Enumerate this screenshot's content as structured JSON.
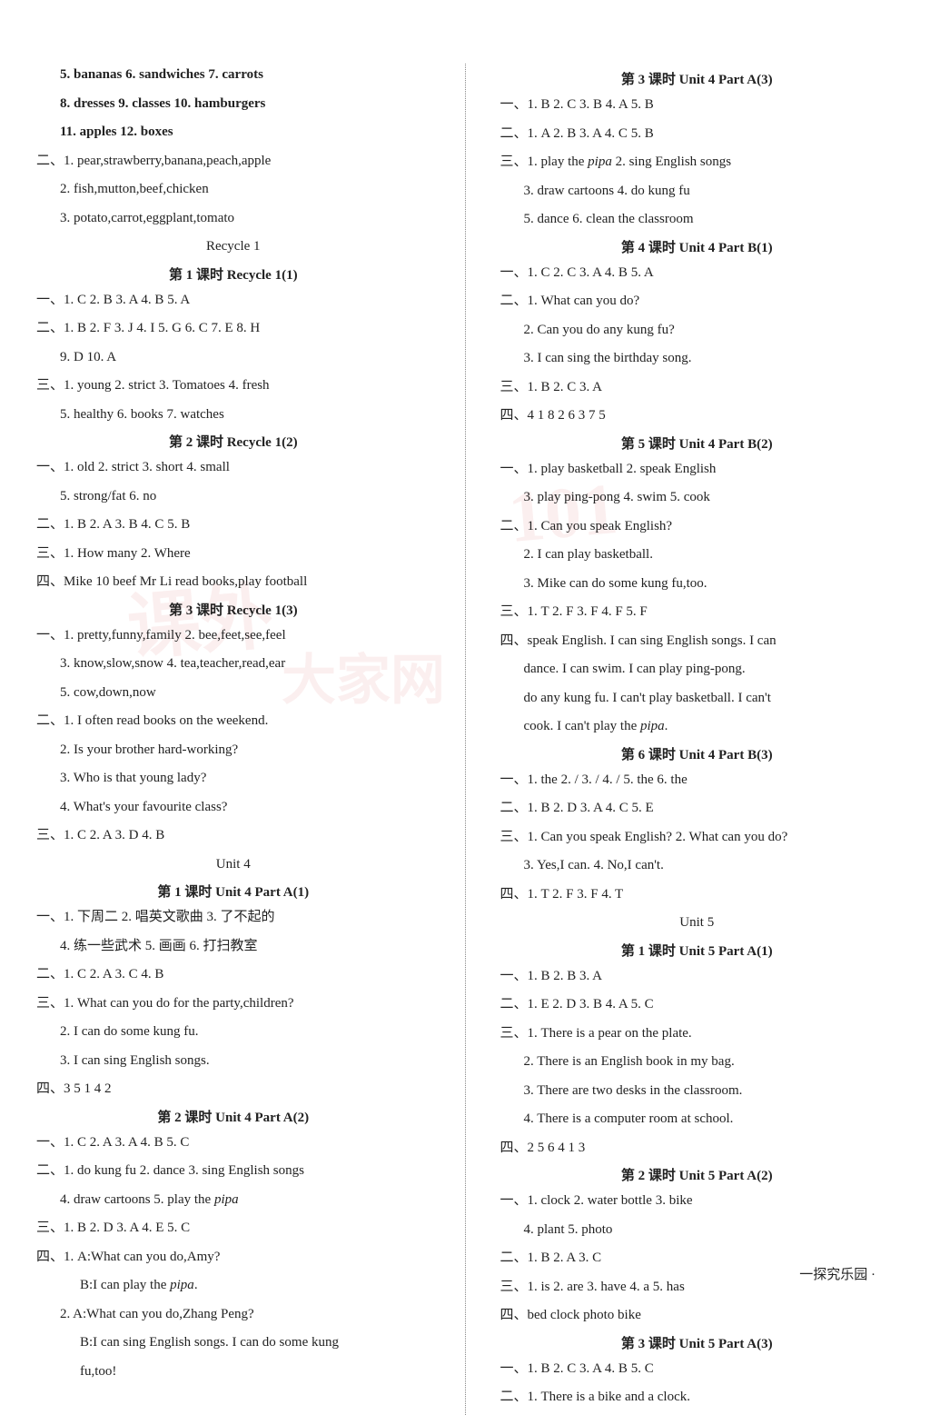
{
  "left": {
    "l1": "5. bananas  6. sandwiches  7. carrots",
    "l2": "8. dresses  9. classes  10. hamburgers",
    "l3": "11. apples  12. boxes",
    "l4": "二、1. pear,strawberry,banana,peach,apple",
    "l5": "2. fish,mutton,beef,chicken",
    "l6": "3. potato,carrot,eggplant,tomato",
    "recycle1": "Recycle  1",
    "lesson1": "第 1 课时    Recycle 1(1)",
    "l7": "一、1. C  2. B  3. A  4. B  5. A",
    "l8": "二、1. B  2. F  3. J  4. I  5. G  6. C  7. E  8. H",
    "l9": "9. D  10. A",
    "l10": "三、1. young  2. strict  3. Tomatoes  4. fresh",
    "l11": "5. healthy  6. books  7. watches",
    "lesson2": "第 2 课时    Recycle 1(2)",
    "l12": "一、1. old  2. strict  3. short  4. small",
    "l13": "5. strong/fat  6. no",
    "l14": "二、1. B  2. A  3. B  4. C  5. B",
    "l15": "三、1. How many  2. Where",
    "l16": "四、Mike  10  beef  Mr Li  read books,play football",
    "lesson3": "第 3 课时    Recycle 1(3)",
    "l17": "一、1. pretty,funny,family  2. bee,feet,see,feel",
    "l18": "3. know,slow,snow  4. tea,teacher,read,ear",
    "l19": "5. cow,down,now",
    "l20": "二、1. I often read books on the weekend.",
    "l21": "2. Is your brother hard-working?",
    "l22": "3. Who is that young lady?",
    "l23": "4. What's your favourite class?",
    "l24": "三、1. C  2. A  3. D  4. B",
    "unit4": "Unit  4",
    "u4l1": "第 1 课时    Unit 4    Part A(1)",
    "l25": "一、1. 下周二  2. 唱英文歌曲  3. 了不起的",
    "l26": "4. 练一些武术  5. 画画  6. 打扫教室",
    "l27": "二、1. C  2. A  3. C  4. B",
    "l28": "三、1. What can you do for the party,children?",
    "l29": "2. I can do some kung fu.",
    "l30": "3. I can sing English songs.",
    "l31": "四、3  5  1  4  2",
    "u4l2": "第 2 课时    Unit 4    Part A(2)",
    "l32": "一、1. C  2. A  3. A  4. B  5. C",
    "l33": "二、1. do kung fu  2. dance  3. sing English songs",
    "l34a": "4. draw cartoons  5. play the ",
    "l34b": "pipa",
    "l35": "三、1. B  2. D  3. A  4. E  5. C",
    "l36": "四、1. A:What can you do,Amy?",
    "l37a": "B:I can play the ",
    "l37b": "pipa",
    "l37c": ".",
    "l38": "2. A:What can you do,Zhang Peng?",
    "l39": "B:I can sing English songs. I can do some kung",
    "l40": "fu,too!"
  },
  "right": {
    "u4l3": "第 3 课时    Unit 4    Part A(3)",
    "r1": "一、1. B  2. C  3. B  4. A  5. B",
    "r2": "二、1. A  2. B  3. A  4. C  5. B",
    "r3a": "三、1. play   the   ",
    "r3b": "pipa",
    "r3c": "   2. sing   English   songs",
    "r4": "3. draw   cartoons   4. do   kung   fu",
    "r5": "5. dance  6. clean   the   classroom",
    "u4l4": "第 4 课时    Unit 4    Part B(1)",
    "r6": "一、1. C  2. C  3. A  4. B  5. A",
    "r7": "二、1. What can you do?",
    "r8": "2. Can you do any kung fu?",
    "r9": "3. I can sing the birthday song.",
    "r10": "三、1. B  2. C  3. A",
    "r11": "四、4  1  8  2  6  3  7  5",
    "u4l5": "第 5 课时    Unit 4    Part B(2)",
    "r12": "一、1. play basketball  2. speak English",
    "r13": "3. play ping-pong  4. swim  5. cook",
    "r14": "二、1. Can you speak English?",
    "r15": "2. I can play basketball.",
    "r16": "3. Mike can do some kung fu,too.",
    "r17": "三、1. T  2. F  3. F  4. F  5. F",
    "r18": "四、speak English. I can sing English songs. I can",
    "r19": "dance. I can swim. I can play ping-pong.",
    "r20": "do any kung fu. I can't play basketball. I can't",
    "r21a": "cook. I can't play the ",
    "r21b": "pipa",
    "r21c": ".",
    "u4l6": "第 6 课时    Unit 4    Part B(3)",
    "r22": "一、1. the  2. /  3. /  4. /  5. the  6. the",
    "r23": "二、1. B  2. D  3. A  4. C  5. E",
    "r24": "三、1. Can you speak English?    2. What can you do?",
    "r25": "3. Yes,I can.    4. No,I can't.",
    "r26": "四、1. T  2. F  3. F  4. T",
    "unit5": "Unit  5",
    "u5l1": "第 1 课时    Unit 5    Part A(1)",
    "r27": "一、1. B  2. B  3. A",
    "r28": "二、1. E  2. D  3. B  4. A  5. C",
    "r29": "三、1. There is a pear on the plate.",
    "r30": "2. There is an English book in my bag.",
    "r31": "3. There are two desks in the classroom.",
    "r32": "4. There is a computer room at school.",
    "r33": "四、2  5  6  4  1  3",
    "u5l2": "第 2 课时    Unit 5    Part A(2)",
    "r34": "一、1. clock  2. water bottle  3. bike",
    "r35": "4. plant  5. photo",
    "r36": "二、1. B  2. A  3. C",
    "r37": "三、1. is  2. are  3. have  4. a  5. has",
    "r38": "四、bed  clock  photo  bike",
    "u5l3": "第 3 课时    Unit 5    Part A(3)",
    "r39": "一、1. B  2. C  3. A  4. B  5. C",
    "r40": "二、1. There is a bike and a clock."
  },
  "footer": "一探究乐园 ·",
  "watermarks": {
    "w1": "课外",
    "w2": "101",
    "w3": "大家网"
  }
}
